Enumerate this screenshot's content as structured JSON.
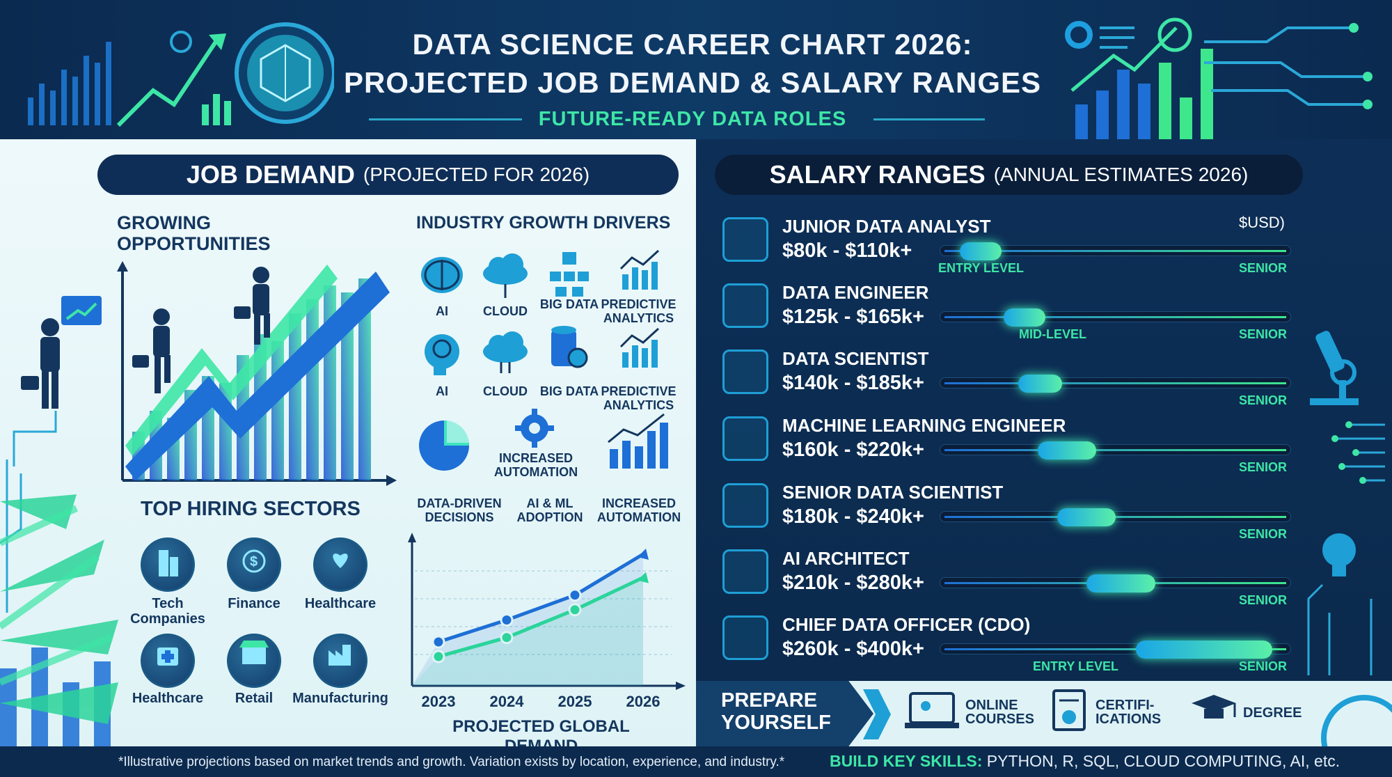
{
  "header": {
    "title_line1": "DATA SCIENCE CAREER CHART 2026:",
    "title_line2": "PROJECTED JOB DEMAND & SALARY RANGES",
    "subtitle": "FUTURE-READY DATA ROLES"
  },
  "job_demand": {
    "title": "JOB DEMAND",
    "subtitle": "(PROJECTED FOR 2026)",
    "growing": "GROWING OPPORTUNITIES",
    "drivers_title": "INDUSTRY GROWTH DRIVERS",
    "drivers": [
      {
        "label": "AI",
        "icon": "brain-icon"
      },
      {
        "label": "CLOUD",
        "icon": "cloud-icon"
      },
      {
        "label": "BIG DATA",
        "icon": "network-icon"
      },
      {
        "label": "PREDICTIVE ANALYTICS",
        "icon": "bar-chart-icon"
      },
      {
        "label": "AI",
        "icon": "head-icon"
      },
      {
        "label": "CLOUD",
        "icon": "cloud-upload-icon"
      },
      {
        "label": "BIG DATA",
        "icon": "database-icon"
      },
      {
        "label": "PREDICTIVE ANALYTICS",
        "icon": "bar-chart-icon"
      },
      {
        "label": "INCREASED AUTOMATION",
        "icon": "gear-icon"
      }
    ],
    "driver_row3": [
      "DATA-DRIVEN DECISIONS",
      "AI & ML ADOPTION",
      "INCREASED AUTOMATION"
    ],
    "sectors_title": "TOP HIRING SECTORS",
    "sectors": [
      {
        "label": "Tech Companies",
        "icon": "building-icon"
      },
      {
        "label": "Finance",
        "icon": "dollar-icon"
      },
      {
        "label": "Healthcare",
        "icon": "heart-hand-icon"
      },
      {
        "label": "Healthcare",
        "icon": "medkit-icon"
      },
      {
        "label": "Retail",
        "icon": "store-icon"
      },
      {
        "label": "Manufacturing",
        "icon": "factory-icon"
      }
    ]
  },
  "salary": {
    "title": "SALARY RANGES",
    "subtitle": "(ANNUAL ESTIMATES 2026)",
    "currency": "$USD)",
    "roles": [
      {
        "name": "JUNIOR DATA ANALYST",
        "range": "$80k - $110k+",
        "icon": "chart-magnifier-icon",
        "low": 80,
        "high": 110,
        "left_label": "ENTRY LEVEL",
        "right_label": "SENIOR"
      },
      {
        "name": "DATA ENGINEER",
        "range": "$125k - $165k+",
        "icon": "gears-icon",
        "low": 125,
        "high": 165,
        "left_label": "MID-LEVEL",
        "right_label": "SENIOR"
      },
      {
        "name": "DATA SCIENTIST",
        "range": "$140k - $185k+",
        "icon": "analytics-icon",
        "low": 140,
        "high": 185,
        "left_label": "",
        "right_label": "SENIOR"
      },
      {
        "name": "MACHINE LEARNING ENGINEER",
        "range": "$160k - $220k+",
        "icon": "neural-network-icon",
        "low": 160,
        "high": 220,
        "left_label": "",
        "right_label": "SENIOR"
      },
      {
        "name": "SENIOR DATA SCIENTIST",
        "range": "$180k - $240k+",
        "icon": "person-trophy-icon",
        "low": 180,
        "high": 240,
        "left_label": "",
        "right_label": "SENIOR"
      },
      {
        "name": "AI ARCHITECT",
        "range": "$210k - $280k+",
        "icon": "city-icon",
        "low": 210,
        "high": 280,
        "left_label": "",
        "right_label": "SENIOR"
      },
      {
        "name": "CHIEF DATA OFFICER (CDO)",
        "range": "$260k - $400k+",
        "icon": "shield-compass-icon",
        "low": 260,
        "high": 400,
        "left_label": "ENTRY LEVEL",
        "right_label": "SENIOR"
      }
    ]
  },
  "prepare": {
    "title": "PREPARE YOURSELF",
    "options": [
      {
        "label": "ONLINE COURSES",
        "icon": "laptop-icon"
      },
      {
        "label": "CERTIFI- ICATIONS",
        "icon": "certificate-icon"
      },
      {
        "label": "DEGREE",
        "icon": "graduation-cap-icon"
      }
    ]
  },
  "footer": {
    "note": "*Illustrative projections based on market trends and growth. Variation exists by location, experience, and industry.*",
    "skills_label": "BUILD KEY SKILLS:",
    "skills": "PYTHON, R, SQL, CLOUD COMPUTING, AI, etc."
  },
  "colors": {
    "navy": "#0c2a4e",
    "accent_green": "#3ee6a6",
    "accent_blue": "#1e6fd6",
    "ink": "#14365e"
  },
  "chart_data": {
    "type": "line",
    "title": "PROJECTED GLOBAL DEMAND",
    "x": [
      "2023",
      "2024",
      "2025",
      "2026"
    ],
    "ylim": [
      0,
      100
    ],
    "series": [
      {
        "values": [
          30,
          45,
          62,
          90
        ]
      },
      {
        "values": [
          20,
          33,
          52,
          74
        ]
      }
    ]
  }
}
